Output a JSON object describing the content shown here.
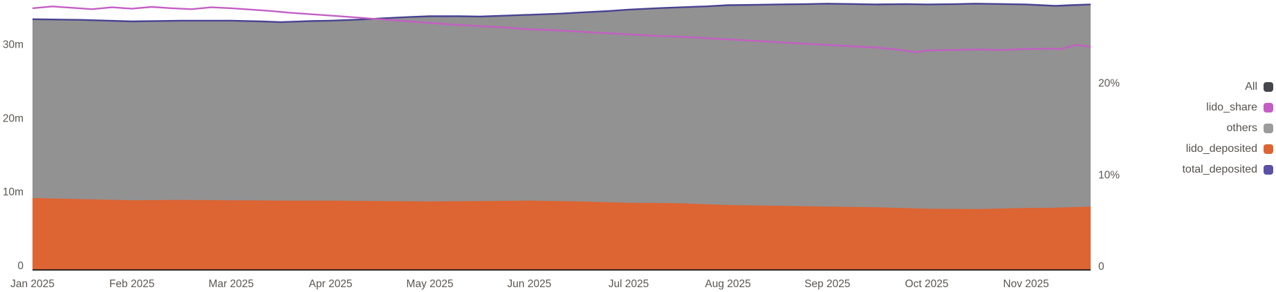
{
  "legend": {
    "items": [
      {
        "label": "All",
        "color": "#46464e"
      },
      {
        "label": "lido_share",
        "color": "#c45ec4"
      },
      {
        "label": "others",
        "color": "#9b9b9b"
      },
      {
        "label": "lido_deposited",
        "color": "#df6434"
      },
      {
        "label": "total_deposited",
        "color": "#5b50a5"
      }
    ]
  },
  "chart_data": {
    "type": "area",
    "title": "",
    "legend_position": "right",
    "grid": false,
    "x_tick_labels": [
      "Jan 2025",
      "Feb 2025",
      "Mar 2025",
      "Apr 2025",
      "May 2025",
      "Jun 2025",
      "Jul 2025",
      "Aug 2025",
      "Sep 2025",
      "Oct 2025",
      "Nov 2025"
    ],
    "x_domain_months": [
      0,
      10.65
    ],
    "left_axis": {
      "unit": "m",
      "ylim": [
        0,
        36.5
      ],
      "ticks": [
        {
          "v": 0,
          "label": "0"
        },
        {
          "v": 10,
          "label": "10m"
        },
        {
          "v": 20,
          "label": "20m"
        },
        {
          "v": 30,
          "label": "30m"
        }
      ]
    },
    "right_axis": {
      "unit": "%",
      "ylim": [
        0,
        29.3
      ],
      "ticks": [
        {
          "v": 0,
          "label": "0"
        },
        {
          "v": 10,
          "label": "10%"
        },
        {
          "v": 20,
          "label": "20%"
        }
      ]
    },
    "series": [
      {
        "name": "total_deposited",
        "type": "line",
        "axis": "left",
        "color": "#474391",
        "area_color_below": "#929292",
        "x": [
          0,
          0.5,
          1,
          1.5,
          2,
          2.3,
          2.5,
          2.8,
          3,
          3.3,
          3.5,
          3.8,
          4,
          4.3,
          4.5,
          4.8,
          5,
          5.3,
          5.5,
          5.8,
          6,
          6.3,
          6.5,
          6.8,
          7,
          7.3,
          7.5,
          7.8,
          8,
          8.3,
          8.5,
          8.8,
          9,
          9.3,
          9.5,
          9.8,
          10,
          10.15,
          10.3,
          10.45,
          10.65
        ],
        "y": [
          33.9,
          33.8,
          33.6,
          33.7,
          33.7,
          33.6,
          33.5,
          33.65,
          33.7,
          33.85,
          34.0,
          34.2,
          34.3,
          34.3,
          34.25,
          34.4,
          34.5,
          34.65,
          34.8,
          35.0,
          35.2,
          35.4,
          35.5,
          35.65,
          35.8,
          35.85,
          35.9,
          35.95,
          36.0,
          35.95,
          35.9,
          35.95,
          35.9,
          35.95,
          36.0,
          35.95,
          35.9,
          35.8,
          35.7,
          35.8,
          35.9
        ]
      },
      {
        "name": "lido_deposited",
        "type": "area",
        "axis": "left",
        "color": "#dd6433",
        "x": [
          0,
          0.5,
          1,
          1.5,
          2,
          2.5,
          3,
          3.5,
          4,
          4.5,
          5,
          5.5,
          6,
          6.5,
          7,
          7.5,
          8,
          8.5,
          9,
          9.5,
          10,
          10.3,
          10.65
        ],
        "y": [
          9.65,
          9.5,
          9.35,
          9.4,
          9.35,
          9.3,
          9.3,
          9.25,
          9.2,
          9.25,
          9.3,
          9.2,
          9.0,
          8.95,
          8.7,
          8.6,
          8.5,
          8.4,
          8.2,
          8.15,
          8.3,
          8.35,
          8.5
        ]
      },
      {
        "name": "others",
        "type": "area-between",
        "axis": "left",
        "color": "#929292",
        "note": "gray band between lido_deposited and total_deposited"
      },
      {
        "name": "lido_share",
        "type": "line",
        "axis": "right",
        "color": "#c45ec4",
        "x": [
          0,
          0.2,
          0.4,
          0.6,
          0.8,
          1,
          1.2,
          1.4,
          1.6,
          1.8,
          2,
          2.2,
          2.4,
          2.6,
          2.8,
          3,
          3.25,
          3.5,
          3.75,
          4,
          4.25,
          4.5,
          4.75,
          5,
          5.25,
          5.5,
          5.75,
          6,
          6.25,
          6.5,
          6.75,
          7,
          7.25,
          7.5,
          7.75,
          8,
          8.25,
          8.5,
          8.7,
          8.9,
          9,
          9.25,
          9.5,
          9.75,
          10,
          10.2,
          10.35,
          10.5,
          10.65
        ],
        "y": [
          28.4,
          28.6,
          28.45,
          28.3,
          28.5,
          28.35,
          28.55,
          28.4,
          28.3,
          28.5,
          28.4,
          28.25,
          28.1,
          27.9,
          27.75,
          27.6,
          27.4,
          27.2,
          27.0,
          26.8,
          26.6,
          26.45,
          26.3,
          26.1,
          26.0,
          25.85,
          25.7,
          25.55,
          25.4,
          25.3,
          25.15,
          25.0,
          24.85,
          24.7,
          24.55,
          24.4,
          24.25,
          24.1,
          23.9,
          23.6,
          23.8,
          23.85,
          23.9,
          23.85,
          23.95,
          24.0,
          23.95,
          24.4,
          24.2
        ]
      }
    ],
    "axis_line_color": "#2b2623"
  }
}
